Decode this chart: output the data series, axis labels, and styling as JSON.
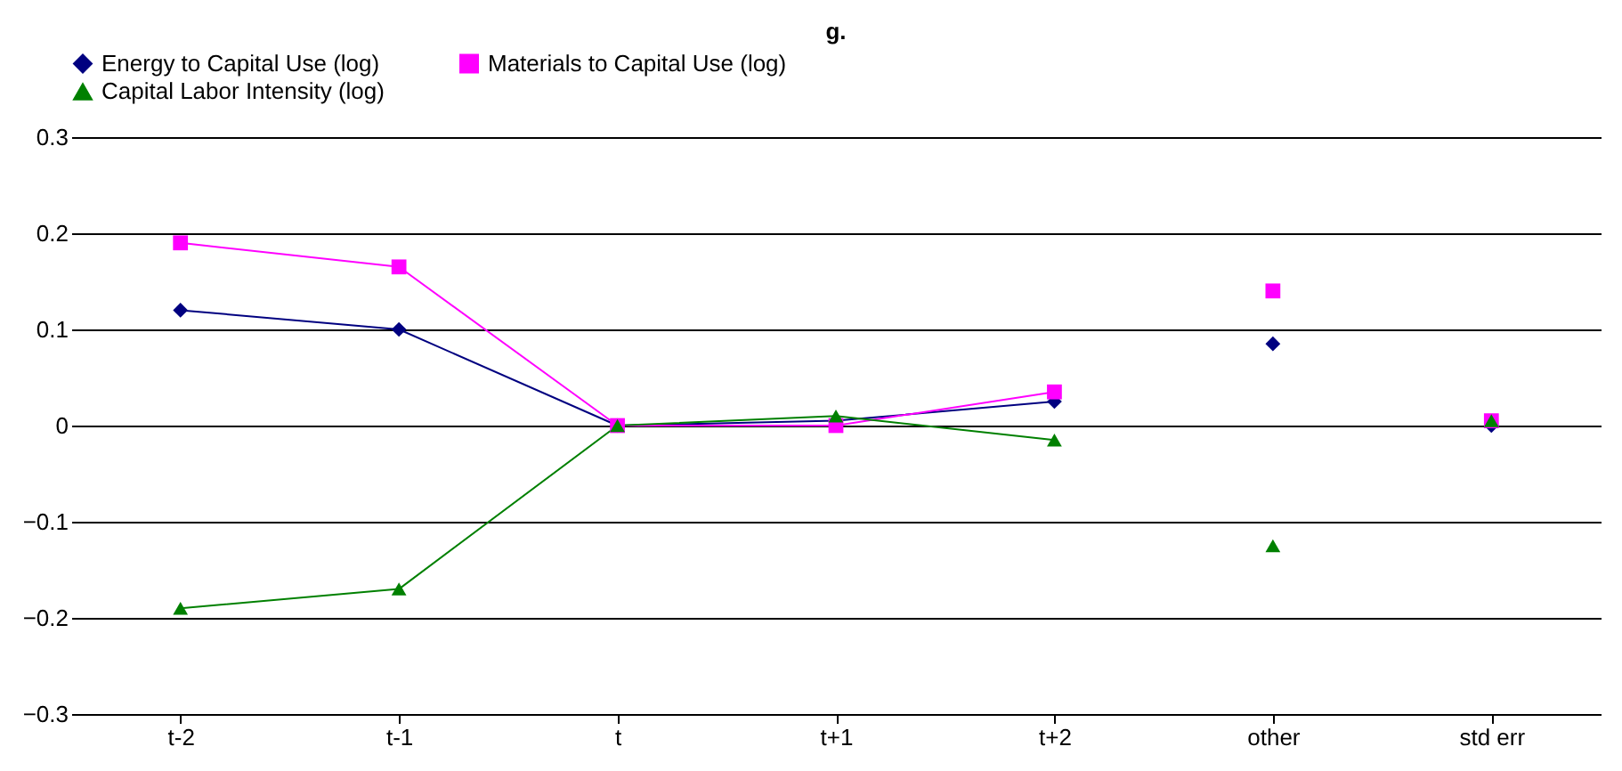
{
  "chart_data": {
    "type": "line",
    "title": "g.",
    "categories": [
      "t-2",
      "t-1",
      "t",
      "t+1",
      "t+2",
      "other",
      "std err"
    ],
    "series": [
      {
        "name": "Energy to Capital Use (log)",
        "color": "#000080",
        "marker": "diamond",
        "values": [
          0.12,
          0.1,
          0,
          0.005,
          0.025,
          null,
          null
        ]
      },
      {
        "name": "Materials to Capital Use (log)",
        "color": "#ff00ff",
        "marker": "square",
        "values": [
          0.19,
          0.165,
          0,
          0,
          0.035,
          null,
          null
        ]
      },
      {
        "name": "Capital Labor Intensity (log)",
        "color": "#008000",
        "marker": "triangle",
        "values": [
          -0.19,
          -0.17,
          0,
          0.01,
          -0.015,
          null,
          null
        ]
      },
      {
        "type": "scatter",
        "color": "#000080",
        "marker": "diamond",
        "values": [
          null,
          null,
          null,
          null,
          null,
          0.085,
          0
        ]
      },
      {
        "type": "scatter",
        "color": "#ff00ff",
        "marker": "square",
        "values": [
          null,
          null,
          null,
          null,
          null,
          0.14,
          0.005
        ]
      },
      {
        "type": "scatter",
        "color": "#008000",
        "marker": "triangle",
        "values": [
          null,
          null,
          null,
          null,
          null,
          -0.125,
          0.005
        ]
      }
    ],
    "ylim": [
      -0.3,
      0.3
    ],
    "yticks": [
      -0.3,
      -0.2,
      -0.1,
      0,
      0.1,
      0.2,
      0.3
    ],
    "grid": "y",
    "legend": "top",
    "line_style": "solid"
  }
}
